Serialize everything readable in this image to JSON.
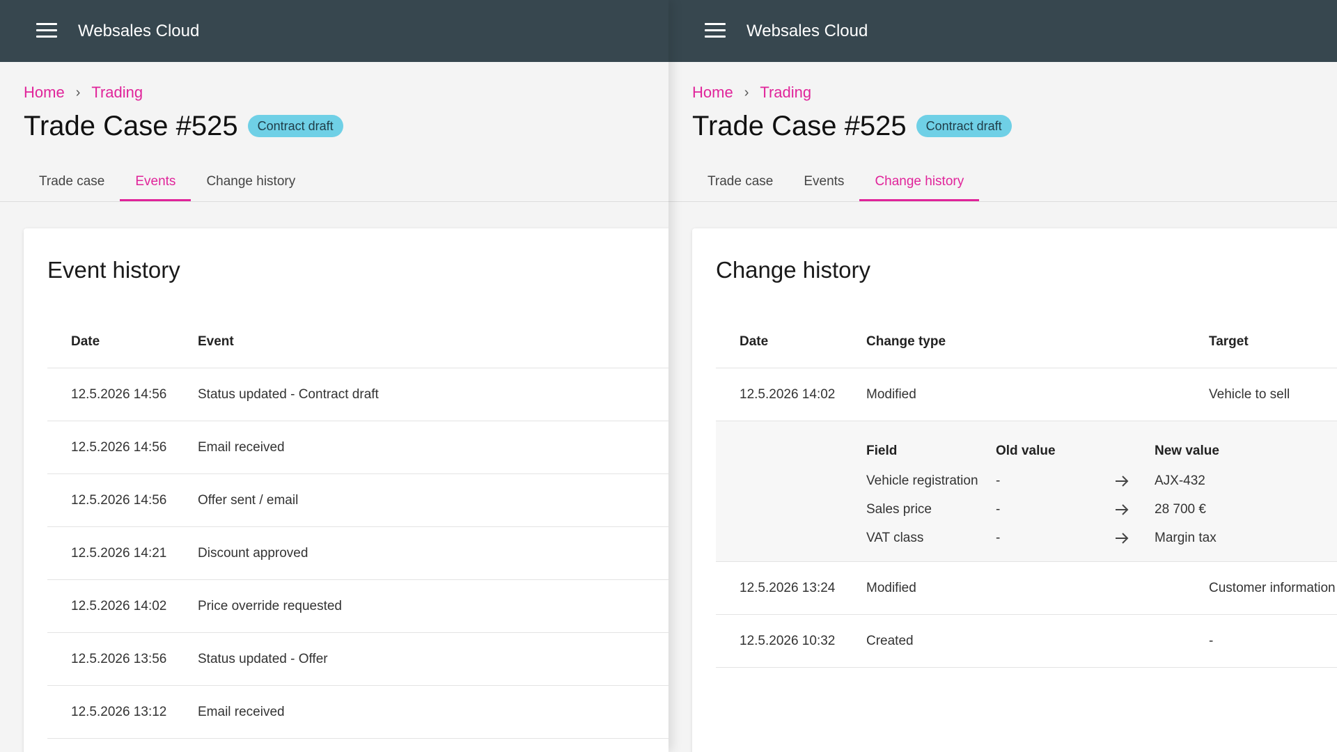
{
  "app": {
    "title": "Websales Cloud"
  },
  "left": {
    "breadcrumb": [
      "Home",
      "Trading"
    ],
    "title": "Trade Case #525",
    "badge": "Contract draft",
    "tabs": [
      "Trade case",
      "Events",
      "Change history"
    ],
    "active_tab": "Events",
    "card_title": "Event history",
    "columns": [
      "Date",
      "Event"
    ],
    "rows": [
      {
        "date": "12.5.2026 14:56",
        "event": "Status updated - Contract draft"
      },
      {
        "date": "12.5.2026 14:56",
        "event": "Email received"
      },
      {
        "date": "12.5.2026 14:56",
        "event": "Offer sent / email"
      },
      {
        "date": "12.5.2026 14:21",
        "event": "Discount approved"
      },
      {
        "date": "12.5.2026 14:02",
        "event": "Price override requested"
      },
      {
        "date": "12.5.2026 13:56",
        "event": "Status updated - Offer"
      },
      {
        "date": "12.5.2026 13:12",
        "event": "Email received"
      }
    ]
  },
  "right": {
    "breadcrumb": [
      "Home",
      "Trading"
    ],
    "title": "Trade Case #525",
    "badge": "Contract draft",
    "tabs": [
      "Trade case",
      "Events",
      "Change history"
    ],
    "active_tab": "Change history",
    "card_title": "Change history",
    "columns": [
      "Date",
      "Change type",
      "Target"
    ],
    "rows": [
      {
        "date": "12.5.2026 14:02",
        "type": "Modified",
        "target": "Vehicle to sell"
      },
      {
        "date": "12.5.2026 13:24",
        "type": "Modified",
        "target": "Customer information"
      },
      {
        "date": "12.5.2026 10:32",
        "type": "Created",
        "target": "-"
      }
    ],
    "details": {
      "columns": [
        "Field",
        "Old value",
        "New value"
      ],
      "rows": [
        {
          "field": "Vehicle registration",
          "old": "-",
          "new": "AJX-432"
        },
        {
          "field": "Sales price",
          "old": "-",
          "new": "28 700 €"
        },
        {
          "field": "VAT class",
          "old": "-",
          "new": "Margin tax"
        }
      ]
    }
  },
  "icons": {
    "menu": "hamburger-icon",
    "breadcrumb_separator": "chevron-right-icon",
    "change_arrow": "arrow-right-icon"
  },
  "colors": {
    "appbar": "#37474f",
    "accent": "#e0249a",
    "badge": "#6fd0e6"
  }
}
